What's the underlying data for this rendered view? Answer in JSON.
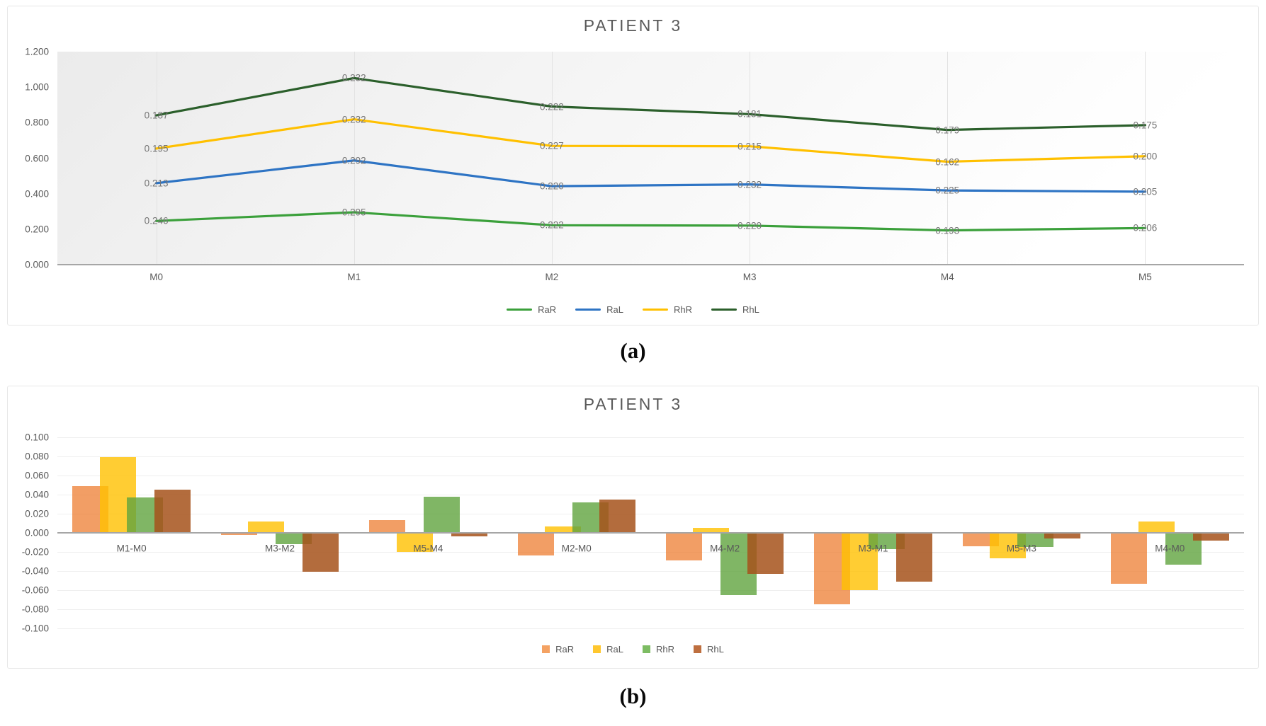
{
  "figure": {
    "caption_a": "(a)",
    "caption_b": "(b)"
  },
  "chart_data": [
    {
      "id": "patient-3-values-by-month",
      "type": "line",
      "stacked": true,
      "title": "PATIENT 3",
      "categories": [
        "M0",
        "M1",
        "M2",
        "M3",
        "M4",
        "M5"
      ],
      "series": [
        {
          "name": "RaR",
          "color": "#3BA03B",
          "values": [
            0.246,
            0.295,
            0.222,
            0.22,
            0.193,
            0.206
          ]
        },
        {
          "name": "RaL",
          "color": "#2E74C4",
          "values": [
            0.213,
            0.292,
            0.22,
            0.232,
            0.225,
            0.205
          ]
        },
        {
          "name": "RhR",
          "color": "#FFC000",
          "values": [
            0.195,
            0.232,
            0.227,
            0.215,
            0.162,
            0.2
          ]
        },
        {
          "name": "RhL",
          "color": "#2B5F2B",
          "values": [
            0.187,
            0.232,
            0.222,
            0.181,
            0.179,
            0.175
          ]
        }
      ],
      "ylim": [
        0,
        1.2
      ],
      "yticks": [
        "1.200",
        "1.000",
        "0.800",
        "0.600",
        "0.400",
        "0.200",
        "0.000"
      ],
      "data_labels": true,
      "legend_position": "bottom",
      "grid": "vertical"
    },
    {
      "id": "patient-3-month-differences",
      "type": "bar",
      "title": "PATIENT 3",
      "categories": [
        "M1-M0",
        "M3-M2",
        "M5-M4",
        "M2-M0",
        "M4-M2",
        "M3-M1",
        "M5-M3",
        "M4-M0"
      ],
      "series": [
        {
          "name": "RaR",
          "color": "rgba(237,125,49,0.75)",
          "legend_color": "#F4A263",
          "values": [
            0.049,
            -0.002,
            0.013,
            -0.024,
            -0.029,
            -0.075,
            -0.014,
            -0.053
          ]
        },
        {
          "name": "RaL",
          "color": "rgba(255,192,0,0.80)",
          "legend_color": "#FFC72E",
          "values": [
            0.079,
            0.012,
            -0.02,
            0.007,
            0.005,
            -0.06,
            -0.027,
            0.012
          ]
        },
        {
          "name": "RhR",
          "color": "rgba(96,164,63,0.80)",
          "legend_color": "#7DBC63",
          "values": [
            0.037,
            -0.012,
            0.038,
            0.032,
            -0.065,
            -0.017,
            -0.015,
            -0.033
          ]
        },
        {
          "name": "RhL",
          "color": "rgba(166,82,27,0.85)",
          "legend_color": "#BE6F3F",
          "values": [
            0.045,
            -0.041,
            -0.004,
            0.035,
            -0.043,
            -0.051,
            -0.006,
            -0.008
          ]
        }
      ],
      "ylim": [
        -0.1,
        0.1
      ],
      "yticks": [
        "0.100",
        "0.080",
        "0.060",
        "0.040",
        "0.020",
        "0.000",
        "-0.020",
        "-0.040",
        "-0.060",
        "-0.080",
        "-0.100"
      ],
      "legend_position": "bottom",
      "grid": "horizontal",
      "bar_overlap": true
    }
  ],
  "colors": {
    "axis_line": "#a6a6a6",
    "gridline": "#e2e2e2",
    "gridline_light": "#efefef",
    "tick_label": "#595959",
    "data_label": "#757575",
    "title": "#595959",
    "panel_border": "#e7e7e7"
  }
}
